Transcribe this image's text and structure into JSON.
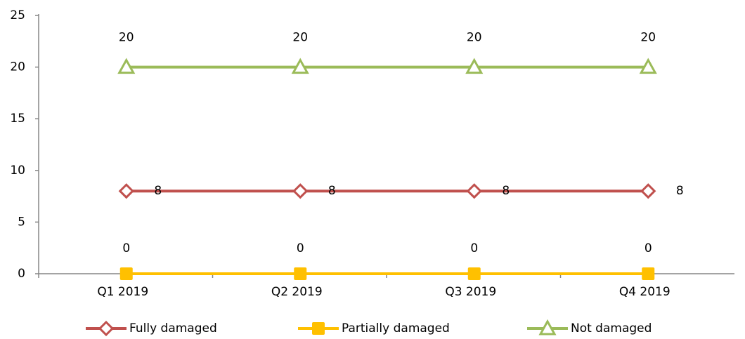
{
  "chart_data": {
    "type": "line",
    "categories": [
      "Q1 2019",
      "Q2 2019",
      "Q3 2019",
      "Q4 2019"
    ],
    "series": [
      {
        "name": "Fully damaged",
        "color": "#c0504d",
        "marker": "diamond",
        "values": [
          8,
          8,
          8,
          8
        ]
      },
      {
        "name": "Partially damaged",
        "color": "#ffc000",
        "marker": "square",
        "values": [
          0,
          0,
          0,
          0
        ]
      },
      {
        "name": "Not damaged",
        "color": "#9bbb59",
        "marker": "triangle",
        "values": [
          20,
          20,
          20,
          20
        ]
      }
    ],
    "ylim": [
      0,
      25
    ],
    "yticks": [
      0,
      5,
      10,
      15,
      20,
      25
    ],
    "grid": false,
    "legend": "bottom"
  }
}
